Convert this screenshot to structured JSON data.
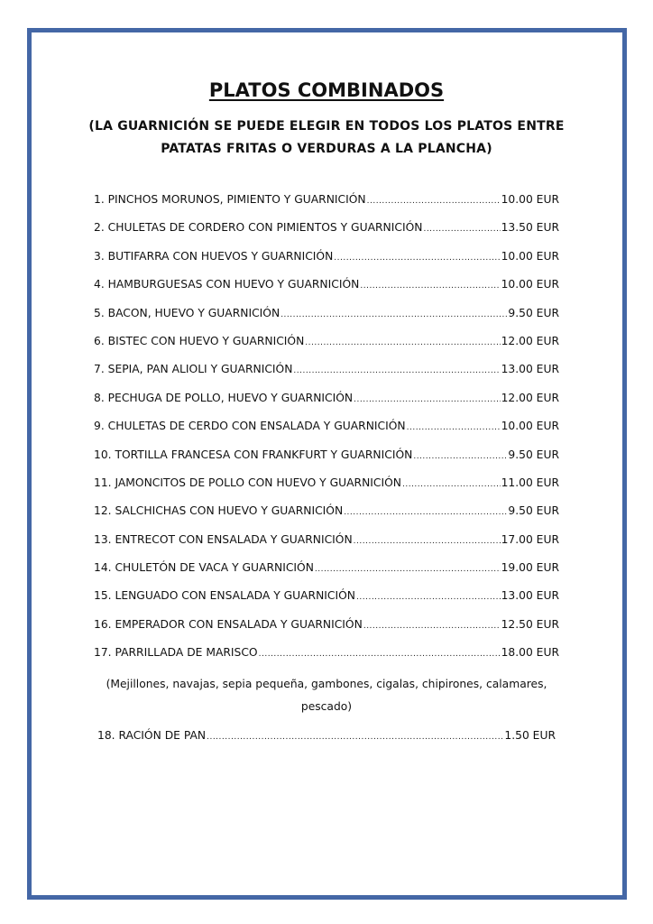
{
  "title": "PLATOS COMBINADOS",
  "subtitle_lines": [
    "(LA GUARNICIÓN SE PUEDE ELEGIR EN TODOS LOS PLATOS ENTRE",
    "PATATAS FRITAS O VERDURAS A LA PLANCHA)"
  ],
  "items": [
    {
      "label": "1. PINCHOS MORUNOS, PIMIENTO Y GUARNICIÓN",
      "price": "10.00 EUR"
    },
    {
      "label": "2. CHULETAS DE CORDERO CON PIMIENTOS Y GUARNICIÓN",
      "price": "13.50 EUR"
    },
    {
      "label": "3. BUTIFARRA CON HUEVOS Y GUARNICIÓN",
      "price": "10.00 EUR"
    },
    {
      "label": "4. HAMBURGUESAS CON HUEVO Y GUARNICIÓN",
      "price": "10.00 EUR"
    },
    {
      "label": "5. BACON, HUEVO Y GUARNICIÓN",
      "price": "9.50 EUR"
    },
    {
      "label": "6. BISTEC CON HUEVO Y GUARNICIÓN",
      "price": "12.00 EUR"
    },
    {
      "label": "7. SEPIA, PAN ALIOLI Y GUARNICIÓN",
      "price": "13.00 EUR"
    },
    {
      "label": "8. PECHUGA DE POLLO, HUEVO Y GUARNICIÓN",
      "price": "12.00 EUR"
    },
    {
      "label": "9. CHULETAS DE CERDO CON ENSALADA Y GUARNICIÓN",
      "price": "10.00 EUR"
    },
    {
      "label": "10. TORTILLA FRANCESA CON FRANKFURT Y GUARNICIÓN",
      "price": "9.50 EUR"
    },
    {
      "label": "11. JAMONCITOS DE POLLO CON HUEVO Y GUARNICIÓN",
      "price": "11.00 EUR"
    },
    {
      "label": "12. SALCHICHAS CON HUEVO Y GUARNICIÓN",
      "price": "9.50 EUR"
    },
    {
      "label": "13. ENTRECOT CON ENSALADA Y GUARNICIÓN",
      "price": "17.00 EUR"
    },
    {
      "label": "14. CHULETÓN DE VACA Y GUARNICIÓN",
      "price": "19.00 EUR"
    },
    {
      "label": "15. LENGUADO CON ENSALADA Y GUARNICIÓN",
      "price": "13.00 EUR"
    },
    {
      "label": "16. EMPERADOR CON ENSALADA Y GUARNICIÓN",
      "price": "12.50 EUR"
    },
    {
      "label": "17. PARRILLADA DE MARISCO",
      "price": "18.00 EUR"
    }
  ],
  "note_lines": [
    "(Mejillones, navajas, sepia pequeña, gambones, cigalas, chipirones, calamares,",
    "pescado)"
  ],
  "bread": {
    "label": "18. RACIÓN DE PAN",
    "price": "1.50 EUR"
  },
  "colors": {
    "border": "#4467a6"
  }
}
